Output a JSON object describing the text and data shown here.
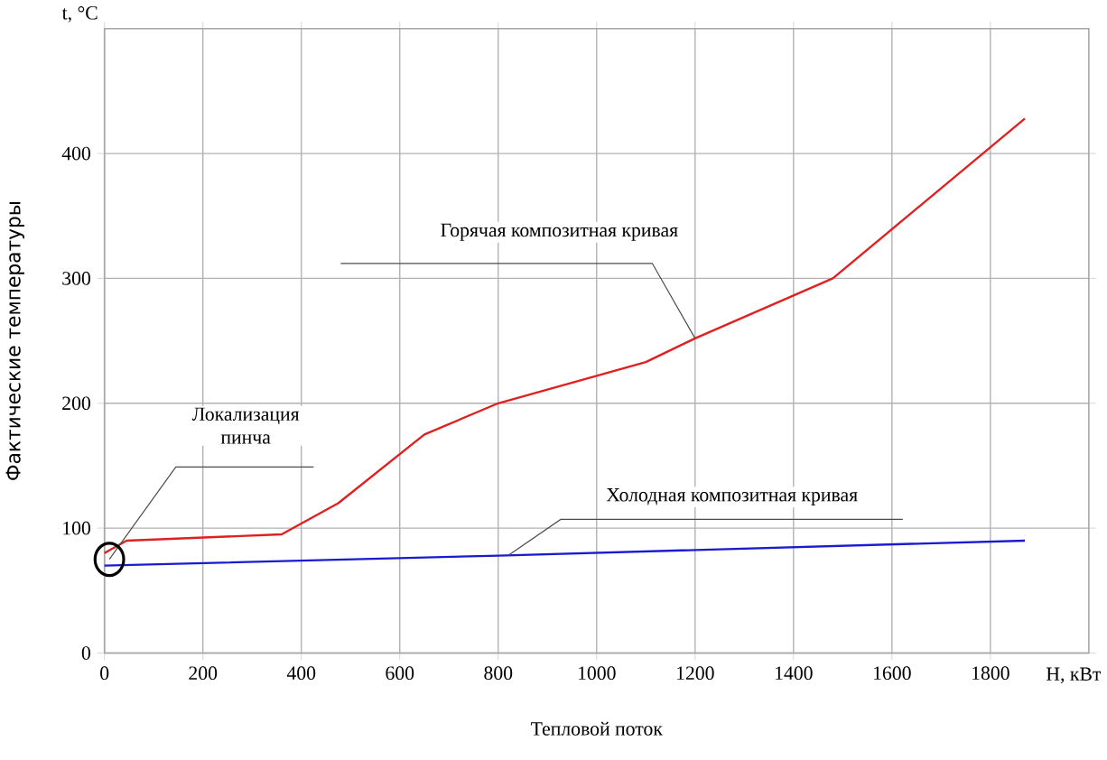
{
  "chart_data": {
    "type": "line",
    "xlabel": "Тепловой поток",
    "ylabel": "Фактические температуры",
    "xlim": [
      0,
      2000
    ],
    "ylim": [
      0,
      500
    ],
    "xticks": [
      0,
      200,
      400,
      600,
      800,
      1000,
      1200,
      1400,
      1600,
      1800
    ],
    "yticks": [
      0,
      100,
      200,
      300,
      400
    ],
    "grid": true,
    "marker": "none",
    "line_style": "solid",
    "series": [
      {
        "color": "#e02020",
        "x": [
          0,
          45,
          360,
          475,
          650,
          800,
          1100,
          1200,
          1480,
          1870
        ],
        "values": [
          80,
          90,
          95,
          120,
          175,
          200,
          233,
          252,
          300,
          428
        ]
      },
      {
        "color": "#1a1ad0",
        "x": [
          0,
          800,
          1870
        ],
        "values": [
          70,
          78,
          90
        ]
      }
    ],
    "annotations": [
      "t, °C",
      "H, кВт",
      {
        "text": "Горячая композитная кривая",
        "x": 1200,
        "y": 252
      },
      {
        "text": "Холодная композитная кривая",
        "x": 820,
        "y": 78
      },
      {
        "text": "Локализация пинча",
        "x": 10,
        "y": 75
      }
    ]
  }
}
